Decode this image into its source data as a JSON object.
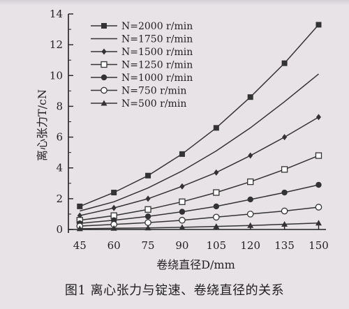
{
  "caption": "图1   离心张力与锭速、卷绕直径的关系",
  "chart_data": {
    "type": "line",
    "xlabel": "卷绕直径D/mm",
    "ylabel": "离心张力T/cN",
    "x": [
      45,
      60,
      75,
      90,
      105,
      120,
      135,
      150
    ],
    "xlim": [
      40,
      152
    ],
    "ylim": [
      0,
      14
    ],
    "yticks": [
      0,
      2,
      4,
      6,
      8,
      10,
      12,
      14
    ],
    "legend_position": "top-left",
    "series": [
      {
        "name": "N=2000 r/min",
        "marker": "filled-square",
        "values": [
          1.5,
          2.4,
          3.5,
          4.9,
          6.6,
          8.6,
          10.8,
          13.3
        ]
      },
      {
        "name": "N=1750 r/min",
        "marker": "none",
        "values": [
          1.2,
          1.8,
          2.7,
          3.8,
          5.1,
          6.6,
          8.3,
          10.1
        ]
      },
      {
        "name": "N=1500 r/min",
        "marker": "filled-diamond",
        "values": [
          0.9,
          1.4,
          2.0,
          2.8,
          3.7,
          4.8,
          6.0,
          7.3
        ]
      },
      {
        "name": "N=1250 r/min",
        "marker": "open-square",
        "values": [
          0.6,
          0.9,
          1.3,
          1.8,
          2.4,
          3.1,
          3.9,
          4.8
        ]
      },
      {
        "name": "N=1000 r/min",
        "marker": "filled-circle",
        "values": [
          0.4,
          0.6,
          0.85,
          1.15,
          1.5,
          1.95,
          2.4,
          2.9
        ]
      },
      {
        "name": "N=750 r/min",
        "marker": "open-circle",
        "values": [
          0.22,
          0.33,
          0.45,
          0.6,
          0.8,
          1.0,
          1.2,
          1.45
        ]
      },
      {
        "name": "N=500 r/min",
        "marker": "filled-triangle",
        "values": [
          0.05,
          0.08,
          0.1,
          0.14,
          0.2,
          0.26,
          0.34,
          0.42
        ]
      }
    ]
  }
}
